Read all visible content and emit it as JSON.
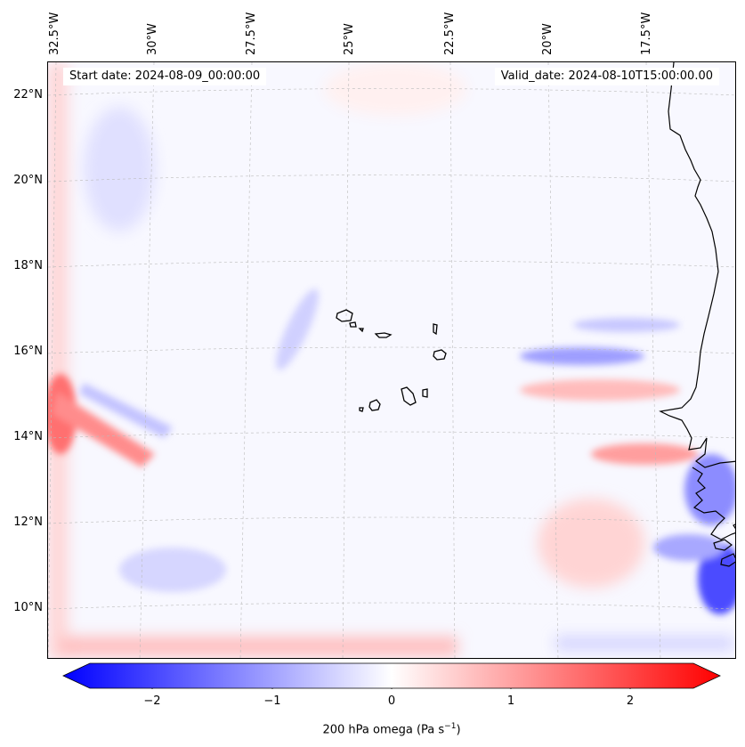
{
  "header": {
    "start_date": "Start date: 2024-08-09_00:00:00",
    "valid_date": "Valid_date: 2024-08-10T15:00:00.00"
  },
  "axes": {
    "lon_labels": [
      "32.5°W",
      "30°W",
      "27.5°W",
      "25°W",
      "22.5°W",
      "20°W",
      "17.5°W"
    ],
    "lat_labels": [
      "22°N",
      "20°N",
      "18°N",
      "16°N",
      "14°N",
      "12°N",
      "10°N"
    ]
  },
  "colorbar": {
    "ticks": [
      "−2",
      "−1",
      "0",
      "1",
      "2"
    ],
    "label": "200 hPa omega (Pa s",
    "label_exp": "−1",
    "label_close": ")",
    "range": [
      -2.6,
      2.6
    ],
    "cmap": "bwr",
    "min_color": "#0000ff",
    "mid_color": "#ffffff",
    "max_color": "#ff0000"
  },
  "map": {
    "background_color": "#f7f7ff",
    "coastline_color": "#000000",
    "gridline_color": "#bbbbbb",
    "features": [
      "Cape Verde Islands",
      "West African coastline"
    ]
  }
}
